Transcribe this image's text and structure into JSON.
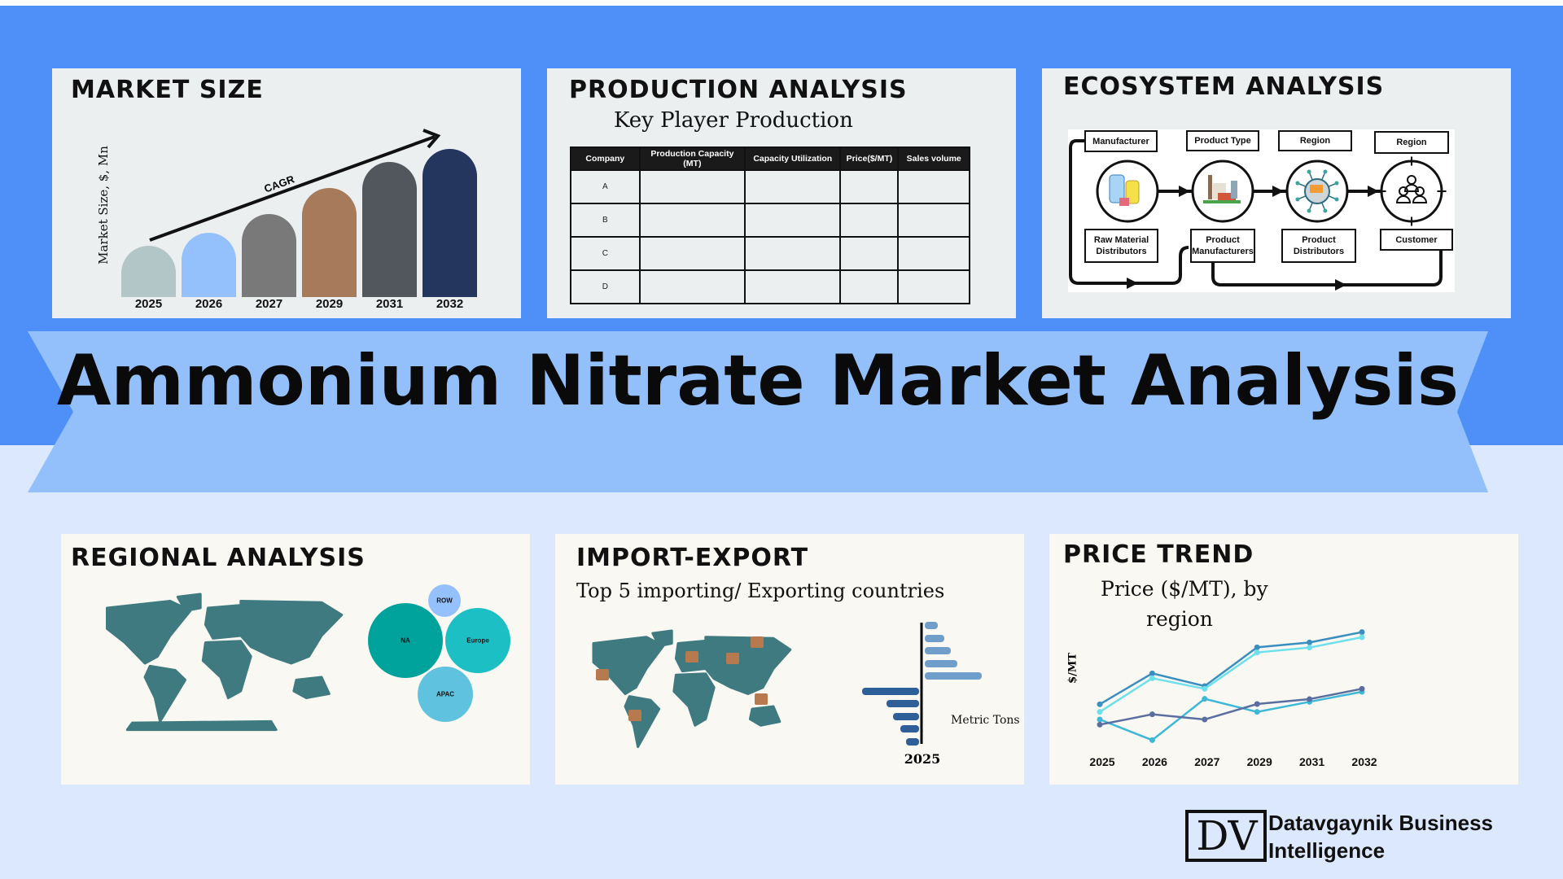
{
  "title": "Ammonium Nitrate Market Analysis",
  "colors": {
    "top_background": "#4f90f8",
    "bottom_background": "#dce8fd",
    "ribbon": "#93bffa"
  },
  "market_size": {
    "heading": "MARKET SIZE",
    "chart_data": {
      "type": "bar",
      "title": "",
      "ylabel": "Market Size, $, Mn",
      "annotation": "CAGR",
      "categories": [
        "2025",
        "2026",
        "2027",
        "2029",
        "2031",
        "2032"
      ],
      "values": [
        63,
        79,
        102,
        134,
        166,
        182
      ],
      "colors": [
        "#b3c6c7",
        "#94c1fb",
        "#797979",
        "#a67a5a",
        "#52575d",
        "#24355e"
      ]
    }
  },
  "production": {
    "heading": "PRODUCTION ANALYSIS",
    "subtitle": "Key Player Production",
    "columns": [
      "Company",
      "Production Capacity (MT)",
      "Capacity Utilization",
      "Price($/MT)",
      "Sales volume"
    ],
    "rows": [
      "A",
      "B",
      "C",
      "D"
    ]
  },
  "ecosystem": {
    "heading": "ECOSYSTEM ANALYSIS",
    "top_labels": [
      "Manufacturer",
      "Product Type",
      "Region",
      "Region"
    ],
    "bottom_labels": [
      "Raw Material Distributors",
      "Product Manufacturers",
      "Product Distributors",
      "Customer"
    ],
    "icons": [
      "raw-material-barrels-icon",
      "factory-icon",
      "distribution-truck-icon",
      "customer-group-icon"
    ]
  },
  "regional": {
    "heading": "REGIONAL ANALYSIS",
    "bubbles": [
      {
        "label": "NA",
        "color": "#00a39c"
      },
      {
        "label": "Europe",
        "color": "#1bbfc4"
      },
      {
        "label": "ROW",
        "color": "#94c1fb"
      },
      {
        "label": "APAC",
        "color": "#5fc3e0"
      }
    ]
  },
  "import_export": {
    "heading": "IMPORT-EXPORT",
    "subtitle": "Top 5 importing/ Exporting countries",
    "chart_data": {
      "type": "bar",
      "orientation": "horizontal-diverging",
      "xlabel": "Metric Tons",
      "category": "2025",
      "series": [
        {
          "values": [
            16,
            24,
            32,
            40,
            70
          ],
          "color": "#6f9ecb"
        },
        {
          "values": [
            70,
            40,
            32,
            23,
            16
          ],
          "color": "#2f5f98"
        }
      ]
    }
  },
  "price_trend": {
    "heading": "PRICE TREND",
    "subtitle_line1": "Price ($/MT), by",
    "subtitle_line2": "region",
    "chart_data": {
      "type": "line",
      "ylabel": "$/MT",
      "categories": [
        "2025",
        "2026",
        "2027",
        "2029",
        "2031",
        "2032"
      ],
      "series": [
        {
          "values": [
            18.4,
            29.8,
            25.1,
            39.4,
            41.2,
            45.0
          ],
          "color": "#3a8fc0"
        },
        {
          "values": [
            15.6,
            28.0,
            24.1,
            37.5,
            39.3,
            43.1
          ],
          "color": "#6ee0ec"
        },
        {
          "values": [
            12.8,
            5.2,
            20.4,
            15.6,
            19.3,
            23.0
          ],
          "color": "#3fb8d8"
        },
        {
          "values": [
            10.9,
            14.7,
            12.8,
            18.5,
            20.3,
            24.1
          ],
          "color": "#5a6fa0"
        }
      ]
    }
  },
  "logo": {
    "mark": "DV",
    "line1": "Datavgaynik Business",
    "line2": "Intelligence"
  }
}
